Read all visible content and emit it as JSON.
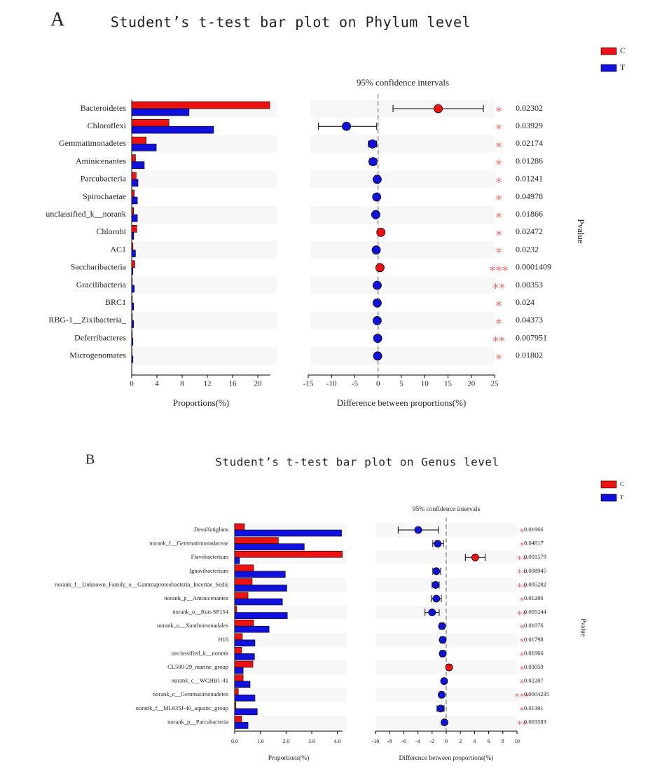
{
  "chart_data": [
    {
      "type": "errorbar",
      "panel": "A",
      "title": "Student’s t-test bar plot on Phylum level",
      "subtitle": "95% confidence intervals",
      "categories": [
        "Bacteroidetes",
        "Chloroflexi",
        "Gemmatimonadetes",
        "Aminicenantes",
        "Parcubacteria",
        "Spirochaetae",
        "unclassified_k__norank",
        "Chlorobi",
        "AC1",
        "Saccharibacteria",
        "Gracilibacteria",
        "BRC1",
        "RBG-1__Zixibacteria_",
        "Deferribacteres",
        "Microgenomates"
      ],
      "series": [
        {
          "name": "C",
          "color": "#ee1111",
          "values": [
            21.9,
            5.9,
            2.3,
            0.6,
            0.7,
            0.4,
            0.3,
            0.8,
            0.2,
            0.5,
            0.1,
            0.1,
            0.1,
            0.1,
            0.05
          ]
        },
        {
          "name": "T",
          "color": "#1111dd",
          "values": [
            9.1,
            13.0,
            3.9,
            2.0,
            1.0,
            0.9,
            0.9,
            0.3,
            0.6,
            0.2,
            0.4,
            0.3,
            0.3,
            0.2,
            0.2
          ]
        }
      ],
      "xlim": [
        0,
        22
      ],
      "xticks": [
        0,
        4,
        8,
        12,
        16,
        20
      ],
      "xlabel": "Proportions(%)",
      "diff": {
        "values": [
          12.9,
          -6.8,
          -1.2,
          -1.1,
          -0.2,
          -0.3,
          -0.5,
          0.6,
          -0.4,
          0.4,
          -0.2,
          -0.2,
          -0.2,
          -0.1,
          -0.1
        ],
        "ci_low": [
          3.2,
          -12.8,
          -2.1,
          -1.8,
          -0.4,
          -0.5,
          -0.8,
          0.3,
          -0.6,
          0.2,
          -0.3,
          -0.3,
          -0.3,
          -0.2,
          -0.2
        ],
        "ci_high": [
          22.6,
          -0.3,
          -0.3,
          -0.4,
          0.0,
          -0.1,
          -0.2,
          0.9,
          -0.2,
          0.6,
          -0.1,
          -0.1,
          -0.1,
          0.0,
          0.0
        ],
        "xlim": [
          -15,
          25
        ],
        "xticks": [
          -15,
          -10,
          -5,
          0,
          5,
          10,
          15,
          20,
          25
        ],
        "xlabel": "Difference between proportions(%)"
      },
      "pvalues": [
        0.02302,
        0.03929,
        0.02174,
        0.01286,
        0.01241,
        0.04978,
        0.01866,
        0.02472,
        0.0232,
        0.0001409,
        0.00353,
        0.024,
        0.04373,
        0.007951,
        0.01802
      ],
      "stars": [
        "*",
        "*",
        "*",
        "*",
        "*",
        "*",
        "*",
        "*",
        "*",
        "***",
        "**",
        "*",
        "*",
        "**",
        "*"
      ],
      "star_color": "#f07070",
      "pvalue_label": "Pvalue"
    },
    {
      "type": "errorbar",
      "panel": "B",
      "title": "Student’s t-test bar plot on Genus level",
      "subtitle": "95% confidence intervals",
      "categories": [
        "Desulfatiglans",
        "norank_f__Gemmatimonadaceae",
        "Flavobacterium",
        "Ignavibacterium",
        "norank_f__Unknown_Family_o__Gammaproteobacteria_Incertae_Sedis",
        "norank_p__Aminicenantes",
        "norank_o__Run-SP154",
        "norank_o__Xanthomonadales",
        "H16",
        "unclassified_k__norank",
        "CL500-29_marine_group",
        "norank_c__WCHB1-41",
        "norank_c__Gemmatimonadetes",
        "norank_f__ML635J-40_aquatic_group",
        "norank_p__Parcubacteria"
      ],
      "series": [
        {
          "name": "C",
          "color": "#ee1111",
          "values": [
            0.38,
            1.7,
            4.19,
            0.74,
            0.68,
            0.52,
            0.08,
            0.74,
            0.3,
            0.27,
            0.71,
            0.33,
            0.14,
            0.05,
            0.27
          ]
        },
        {
          "name": "T",
          "color": "#1111dd",
          "values": [
            4.16,
            2.71,
            0.19,
            1.97,
            2.03,
            1.86,
            2.05,
            1.34,
            0.79,
            0.77,
            0.33,
            0.6,
            0.79,
            0.88,
            0.52
          ]
        }
      ],
      "xlim": [
        0,
        4.2
      ],
      "xticks": [
        {
          "value": 0,
          "label": "0.0"
        },
        {
          "value": 1,
          "label": "1.0"
        },
        {
          "value": 2,
          "label": "2.0"
        },
        {
          "value": 3,
          "label": "3.0"
        },
        {
          "value": 4,
          "label": "4.0"
        }
      ],
      "xlabel": "Proportions(%)",
      "diff": {
        "values": [
          -3.96,
          -1.2,
          4.1,
          -1.4,
          -1.5,
          -1.4,
          -2.0,
          -0.6,
          -0.5,
          -0.5,
          0.4,
          -0.3,
          -0.65,
          -0.8,
          -0.25
        ],
        "ci_low": [
          -6.8,
          -1.9,
          2.7,
          -1.9,
          -2.0,
          -2.1,
          -3.0,
          -0.9,
          -0.8,
          -0.8,
          0.1,
          -0.5,
          -0.9,
          -1.3,
          -0.45
        ],
        "ci_high": [
          -1.1,
          -0.4,
          5.5,
          -0.8,
          -1.0,
          -0.7,
          -1.0,
          -0.3,
          -0.2,
          -0.2,
          0.7,
          -0.1,
          -0.4,
          -0.3,
          -0.05
        ],
        "xlim": [
          -10,
          10
        ],
        "xticks": [
          -10,
          -8,
          -6,
          -4,
          -2,
          0,
          2,
          4,
          6,
          8,
          10
        ],
        "xlabel": "Difference between proportions(%)"
      },
      "pvalues": [
        0.01966,
        0.04817,
        0.001579,
        0.008945,
        0.005282,
        0.01286,
        0.005244,
        0.01076,
        0.01798,
        0.01866,
        0.03059,
        0.02287,
        0.0004235,
        0.01391,
        0.003583
      ],
      "stars": [
        "*",
        "*",
        "**",
        "**",
        "**",
        "*",
        "**",
        "*",
        "*",
        "*",
        "*",
        "*",
        "***",
        "*",
        "**"
      ],
      "star_color": "#f07070",
      "pvalue_label": "Pvalue"
    }
  ]
}
